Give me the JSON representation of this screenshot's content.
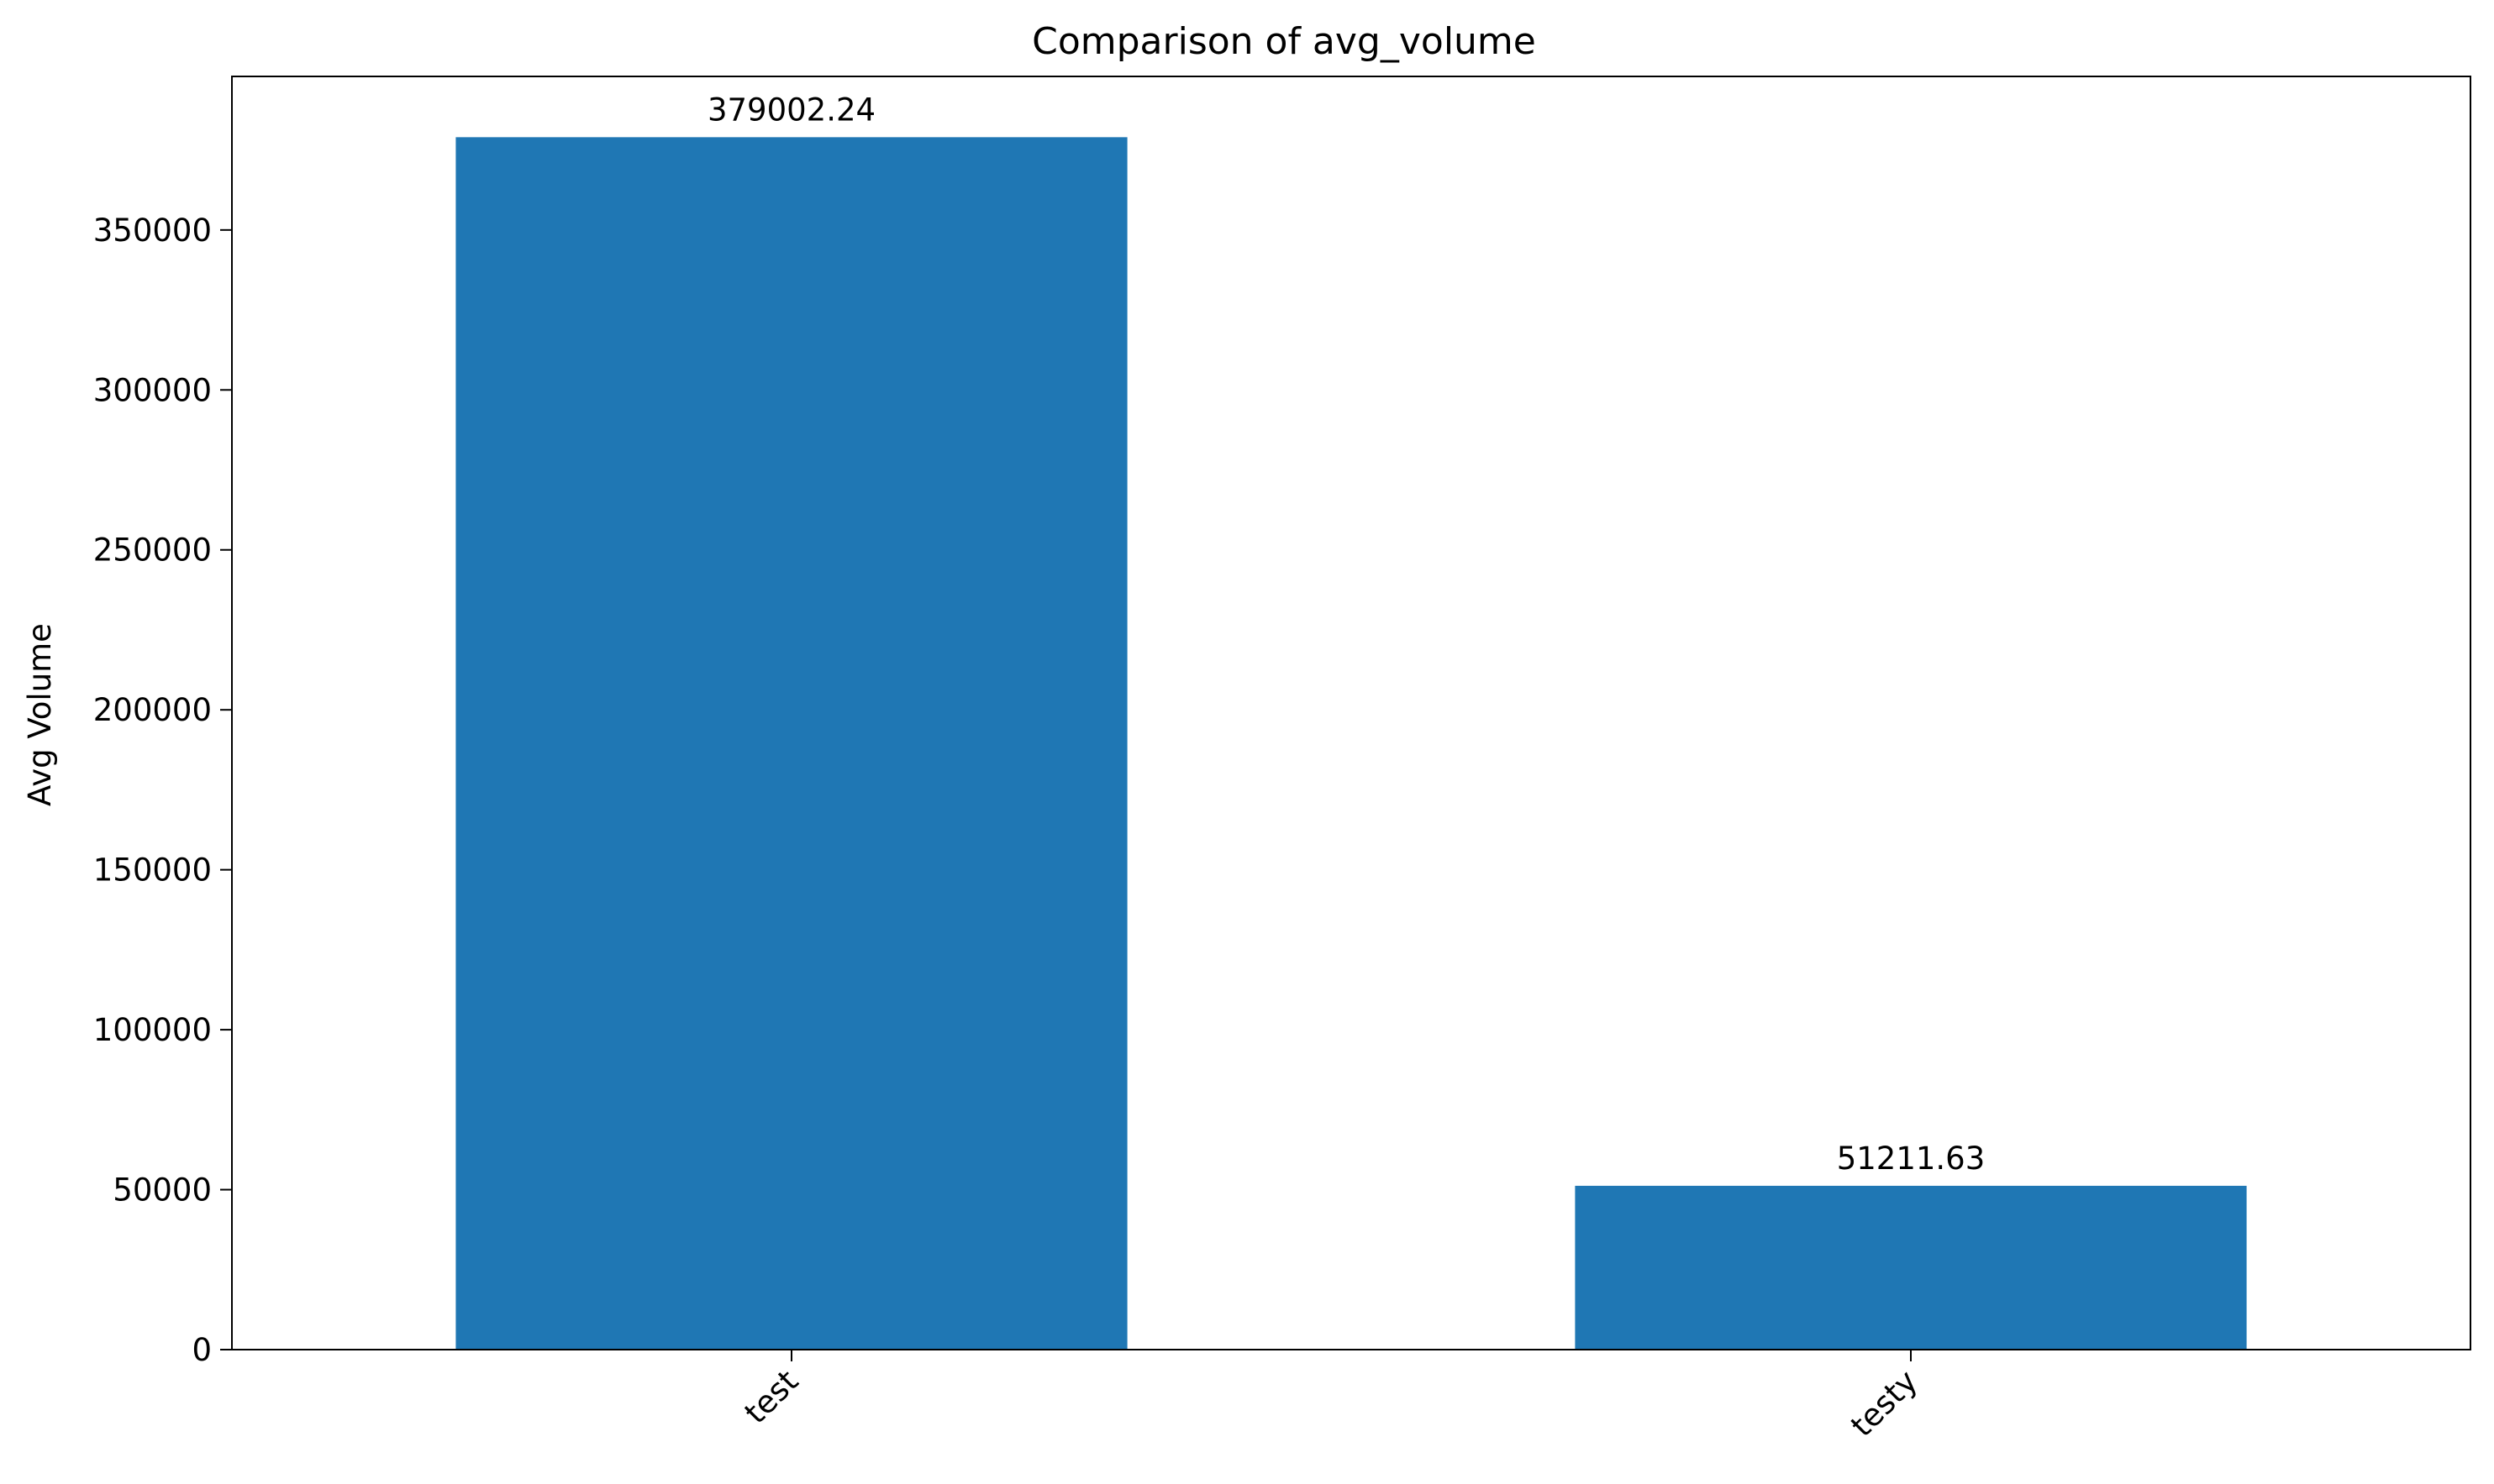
{
  "chart_data": {
    "type": "bar",
    "title": "Comparison of avg_volume",
    "xlabel": "",
    "ylabel": "Avg Volume",
    "categories": [
      "test",
      "testy"
    ],
    "values": [
      379002.24,
      51211.63
    ],
    "data_labels": [
      "379002.24",
      "51211.63"
    ],
    "ylim": [
      0,
      398000
    ],
    "yticks": [
      0,
      50000,
      100000,
      150000,
      200000,
      250000,
      300000,
      350000
    ],
    "ytick_labels": [
      "0",
      "50000",
      "100000",
      "150000",
      "200000",
      "250000",
      "300000",
      "350000"
    ],
    "xtick_rotation": 45,
    "grid": false,
    "legend": "none",
    "bar_color": "#1f77b4"
  }
}
